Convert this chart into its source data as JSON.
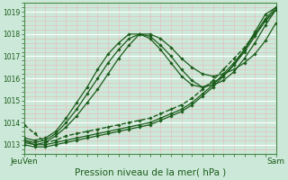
{
  "background_color": "#cce8d8",
  "plot_bg_color": "#cce8d8",
  "grid_major_color": "#ffffff",
  "grid_minor_color": "#e8b8b8",
  "line_color": "#1a5c1a",
  "title": "Pression niveau de la mer( hPa )",
  "xlabel_left": "JeuVen",
  "xlabel_right": "Sam",
  "ylim": [
    1012.6,
    1019.4
  ],
  "xlim": [
    0,
    24
  ],
  "yticks": [
    1013,
    1014,
    1015,
    1016,
    1017,
    1018,
    1019
  ],
  "ytick_fontsize": 5.5,
  "xtick_fontsize": 6.5,
  "title_fontsize": 7.5,
  "series": [
    {
      "x": [
        0,
        1,
        2,
        3,
        4,
        5,
        6,
        7,
        8,
        9,
        10,
        11,
        12,
        13,
        14,
        15,
        16,
        17,
        18,
        19,
        20,
        21,
        22,
        23,
        24
      ],
      "y": [
        1013.9,
        1013.5,
        1013.1,
        1013.2,
        1013.4,
        1013.5,
        1013.6,
        1013.7,
        1013.8,
        1013.9,
        1014.0,
        1014.1,
        1014.2,
        1014.4,
        1014.6,
        1014.8,
        1015.1,
        1015.5,
        1015.9,
        1016.4,
        1016.9,
        1017.4,
        1018.0,
        1018.6,
        1019.1
      ],
      "lw": 1.0,
      "ls": "--",
      "marker": "D",
      "ms": 1.8,
      "zorder": 5
    },
    {
      "x": [
        0,
        1,
        2,
        3,
        4,
        5,
        6,
        7,
        8,
        9,
        10,
        11,
        12,
        13,
        14,
        15,
        16,
        17,
        18,
        19,
        20,
        21,
        22,
        23,
        24
      ],
      "y": [
        1013.2,
        1013.0,
        1013.0,
        1013.1,
        1013.2,
        1013.3,
        1013.4,
        1013.5,
        1013.6,
        1013.7,
        1013.8,
        1013.9,
        1014.0,
        1014.2,
        1014.4,
        1014.6,
        1014.9,
        1015.3,
        1015.7,
        1016.2,
        1016.7,
        1017.3,
        1018.0,
        1018.7,
        1019.2
      ],
      "lw": 0.9,
      "ls": "-",
      "marker": "D",
      "ms": 1.8,
      "zorder": 4
    },
    {
      "x": [
        0,
        1,
        2,
        3,
        4,
        5,
        6,
        7,
        8,
        9,
        10,
        11,
        12,
        13,
        14,
        15,
        16,
        17,
        18,
        19,
        20,
        21,
        22,
        23,
        24
      ],
      "y": [
        1013.0,
        1012.9,
        1012.9,
        1013.0,
        1013.1,
        1013.2,
        1013.3,
        1013.4,
        1013.5,
        1013.6,
        1013.7,
        1013.8,
        1013.9,
        1014.1,
        1014.3,
        1014.5,
        1014.8,
        1015.2,
        1015.6,
        1016.1,
        1016.6,
        1017.2,
        1017.9,
        1018.6,
        1019.1
      ],
      "lw": 0.9,
      "ls": "-",
      "marker": "D",
      "ms": 1.8,
      "zorder": 4
    },
    {
      "x": [
        0,
        1,
        2,
        3,
        4,
        5,
        6,
        7,
        8,
        9,
        10,
        11,
        12,
        13,
        14,
        15,
        16,
        17,
        18,
        19,
        20,
        21,
        22,
        23,
        24
      ],
      "y": [
        1013.1,
        1013.0,
        1013.1,
        1013.4,
        1013.8,
        1014.3,
        1014.9,
        1015.5,
        1016.2,
        1016.9,
        1017.5,
        1018.0,
        1018.0,
        1017.8,
        1017.4,
        1016.9,
        1016.5,
        1016.2,
        1016.1,
        1016.2,
        1016.4,
        1016.7,
        1017.1,
        1017.7,
        1018.5
      ],
      "lw": 0.9,
      "ls": "-",
      "marker": "D",
      "ms": 1.8,
      "zorder": 3
    },
    {
      "x": [
        0,
        1,
        2,
        3,
        4,
        5,
        6,
        7,
        8,
        9,
        10,
        11,
        12,
        13,
        14,
        15,
        16,
        17,
        18,
        19,
        20,
        21,
        22,
        23,
        24
      ],
      "y": [
        1013.2,
        1013.1,
        1013.2,
        1013.5,
        1014.0,
        1014.6,
        1015.3,
        1016.0,
        1016.7,
        1017.3,
        1017.8,
        1018.0,
        1017.9,
        1017.5,
        1017.0,
        1016.4,
        1015.9,
        1015.6,
        1015.7,
        1015.9,
        1016.3,
        1016.9,
        1017.6,
        1018.4,
        1019.1
      ],
      "lw": 0.9,
      "ls": "-",
      "marker": "D",
      "ms": 1.8,
      "zorder": 3
    },
    {
      "x": [
        0,
        1,
        2,
        3,
        4,
        5,
        6,
        7,
        8,
        9,
        10,
        11,
        12,
        13,
        14,
        15,
        16,
        17,
        18,
        19,
        20,
        21,
        22,
        23,
        24
      ],
      "y": [
        1013.3,
        1013.2,
        1013.3,
        1013.6,
        1014.2,
        1014.9,
        1015.6,
        1016.4,
        1017.1,
        1017.6,
        1018.0,
        1018.0,
        1017.8,
        1017.3,
        1016.7,
        1016.1,
        1015.7,
        1015.6,
        1015.8,
        1016.1,
        1016.6,
        1017.3,
        1018.1,
        1018.9,
        1019.2
      ],
      "lw": 0.9,
      "ls": "-",
      "marker": "D",
      "ms": 1.8,
      "zorder": 3
    }
  ]
}
